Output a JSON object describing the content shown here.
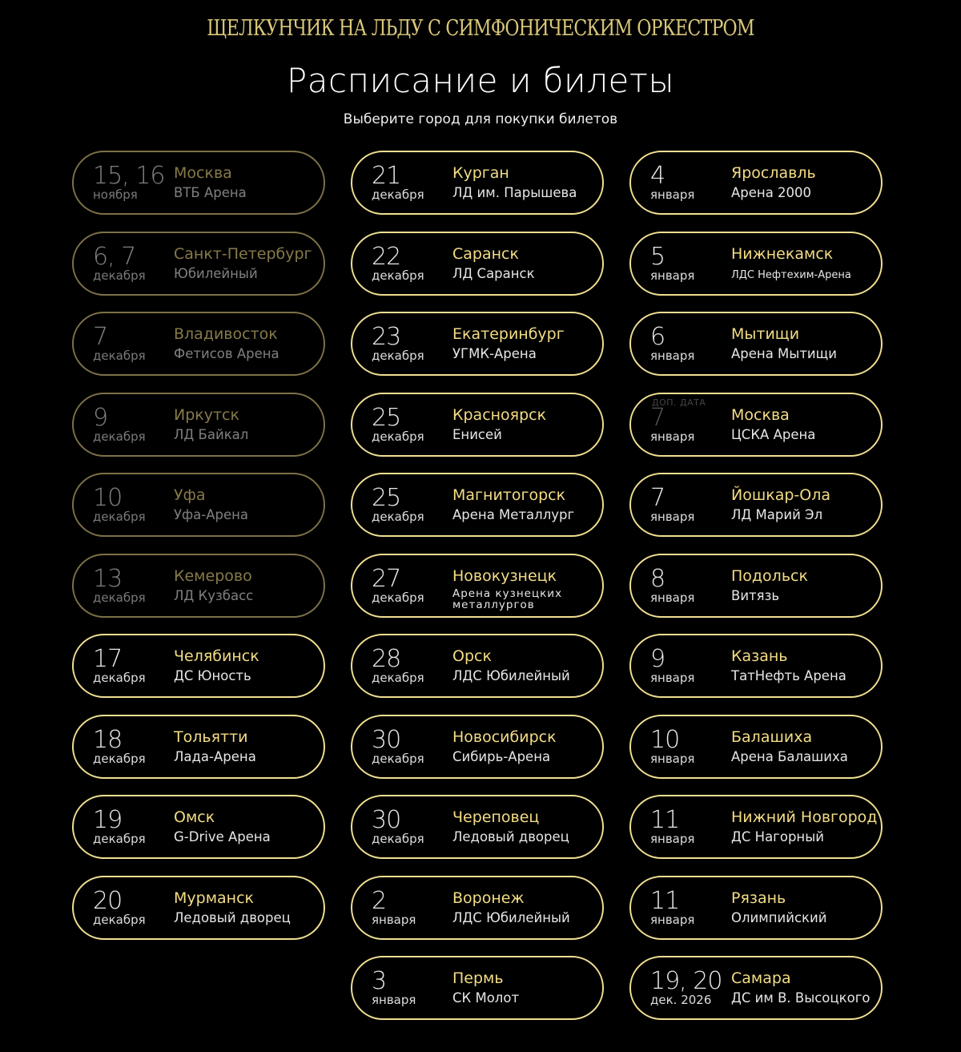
{
  "header": {
    "brand": "ЩЕЛКУНЧИК НА ЛЬДУ С СИМФОНИЧЕСКИМ ОРКЕСТРОМ",
    "title": "Расписание и билеты",
    "subtitle": "Выберите город для покупки билетов"
  },
  "colors": {
    "background": "#000000",
    "accent": "#f0df92",
    "past_border": "#7d7148",
    "city": "#f3dc85"
  },
  "columns": [
    [
      {
        "day": "15, 16",
        "month": "ноября",
        "city": "Москва",
        "venue": "ВТБ Арена",
        "past": true
      },
      {
        "day": "6, 7",
        "month": "декабря",
        "city": "Санкт-Петербург",
        "venue": "Юбилейный",
        "past": true
      },
      {
        "day": "7",
        "month": "декабря",
        "city": "Владивосток",
        "venue": "Фетисов Арена",
        "past": true
      },
      {
        "day": "9",
        "month": "декабря",
        "city": "Иркутск",
        "venue": "ЛД Байкал",
        "past": true
      },
      {
        "day": "10",
        "month": "декабря",
        "city": "Уфа",
        "venue": "Уфа-Арена",
        "past": true
      },
      {
        "day": "13",
        "month": "декабря",
        "city": "Кемерово",
        "venue": "ЛД Кузбасс",
        "past": true
      },
      {
        "day": "17",
        "month": "декабря",
        "city": "Челябинск",
        "venue": "ДС Юность"
      },
      {
        "day": "18",
        "month": "декабря",
        "city": "Тольятти",
        "venue": "Лада-Арена"
      },
      {
        "day": "19",
        "month": "декабря",
        "city": "Омск",
        "venue": "G-Drive Арена"
      },
      {
        "day": "20",
        "month": "декабря",
        "city": "Мурманск",
        "venue": "Ледовый дворец"
      }
    ],
    [
      {
        "day": "21",
        "month": "декабря",
        "city": "Курган",
        "venue": "ЛД им. Парышева"
      },
      {
        "day": "22",
        "month": "декабря",
        "city": "Саранск",
        "venue": "ЛД Саранск"
      },
      {
        "day": "23",
        "month": "декабря",
        "city": "Екатеринбург",
        "venue": "УГМК-Арена"
      },
      {
        "day": "25",
        "month": "декабря",
        "city": "Красноярск",
        "venue": "Енисей"
      },
      {
        "day": "25",
        "month": "декабря",
        "city": "Магнитогорск",
        "venue": "Арена Металлург"
      },
      {
        "day": "27",
        "month": "декабря",
        "city": "Новокузнецк",
        "venue": "Арена кузнецких металлургов",
        "style": "two"
      },
      {
        "day": "28",
        "month": "декабря",
        "city": "Орск",
        "venue": "ЛДС Юбилейный"
      },
      {
        "day": "30",
        "month": "декабря",
        "city": "Новосибирск",
        "venue": "Сибирь-Арена"
      },
      {
        "day": "30",
        "month": "декабря",
        "city": "Череповец",
        "venue": "Ледовый дворец"
      },
      {
        "day": "2",
        "month": "января",
        "city": "Воронеж",
        "venue": "ЛДС Юбилейный"
      },
      {
        "day": "3",
        "month": "января",
        "city": "Пермь",
        "venue": "СК Молот"
      }
    ],
    [
      {
        "day": "4",
        "month": "января",
        "city": "Ярославль",
        "venue": "Арена 2000"
      },
      {
        "day": "5",
        "month": "января",
        "city": "Нижнекамск",
        "venue": "ЛДС Нефтехим-Арена",
        "style": "small"
      },
      {
        "day": "6",
        "month": "января",
        "city": "Мытищи",
        "venue": "Арена Мытищи"
      },
      {
        "day": "7",
        "month": "января",
        "city": "Москва",
        "venue": "ЦСКА Арена",
        "extra": "ДОП. ДАТА",
        "dim_day": true
      },
      {
        "day": "7",
        "month": "января",
        "city": "Йошкар-Ола",
        "venue": "ЛД Марий Эл"
      },
      {
        "day": "8",
        "month": "января",
        "city": "Подольск",
        "venue": "Витязь"
      },
      {
        "day": "9",
        "month": "января",
        "city": "Казань",
        "venue": "ТатНефть Арена"
      },
      {
        "day": "10",
        "month": "января",
        "city": "Балашиха",
        "venue": "Арена Балашиха"
      },
      {
        "day": "11",
        "month": "января",
        "city": "Нижний Новгород",
        "venue": "ДС Нагорный"
      },
      {
        "day": "11",
        "month": "января",
        "city": "Рязань",
        "venue": "Олимпийский"
      },
      {
        "day": "19, 20",
        "month": "дек. 2026",
        "city": "Самара",
        "venue": "ДС им В. Высоцкого"
      }
    ]
  ]
}
